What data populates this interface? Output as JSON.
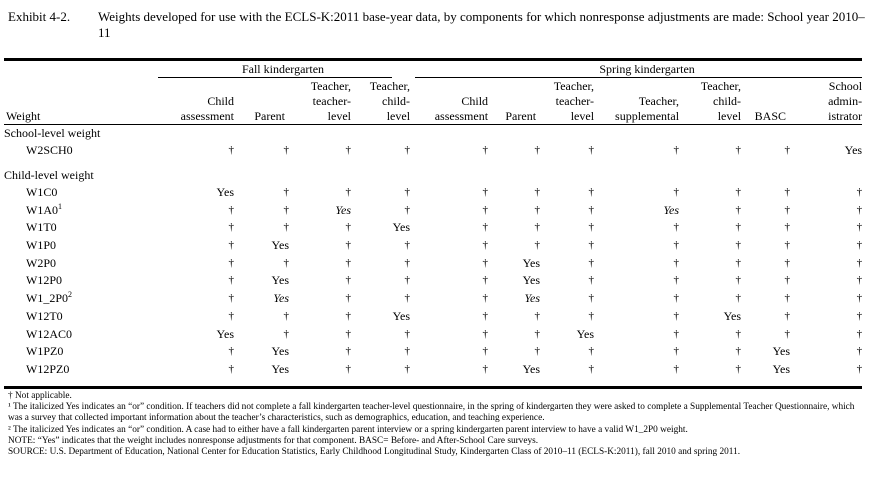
{
  "exhibit": {
    "label": "Exhibit 4-2.",
    "title": "Weights developed for use with the ECLS-K:2011 base-year data, by components for which nonresponse adjustments are made: School year 2010–11"
  },
  "groups": {
    "fall": "Fall kindergarten",
    "spring": "Spring kindergarten"
  },
  "columns": {
    "weight": "Weight",
    "fall_child": "Child assessment",
    "fall_parent": "Parent",
    "fall_teacher_level": "Teacher, teacher-level",
    "fall_teacher_child": "Teacher, child-level",
    "spring_child": "Child assessment",
    "spring_parent": "Parent",
    "spring_teacher_level": "Teacher, teacher-level",
    "spring_teacher_supp": "Teacher, supplemental",
    "spring_teacher_child": "Teacher, child-level",
    "spring_basc": "BASC",
    "spring_admin": "School administrator"
  },
  "sections": {
    "school": "School-level weight",
    "child": "Child-level weight"
  },
  "school_rows": [
    {
      "name": "W2SCH0",
      "sup": "",
      "cells": [
        "†",
        "†",
        "†",
        "†",
        "†",
        "†",
        "†",
        "†",
        "†",
        "†",
        "Yes"
      ],
      "italic": []
    }
  ],
  "child_rows": [
    {
      "name": "W1C0",
      "sup": "",
      "cells": [
        "Yes",
        "†",
        "†",
        "†",
        "†",
        "†",
        "†",
        "†",
        "†",
        "†",
        "†"
      ],
      "italic": []
    },
    {
      "name": "W1A0",
      "sup": "1",
      "cells": [
        "†",
        "†",
        "Yes",
        "†",
        "†",
        "†",
        "†",
        "Yes",
        "†",
        "†",
        "†"
      ],
      "italic": [
        2,
        7
      ]
    },
    {
      "name": "W1T0",
      "sup": "",
      "cells": [
        "†",
        "†",
        "†",
        "Yes",
        "†",
        "†",
        "†",
        "†",
        "†",
        "†",
        "†"
      ],
      "italic": []
    },
    {
      "name": "W1P0",
      "sup": "",
      "cells": [
        "†",
        "Yes",
        "†",
        "†",
        "†",
        "†",
        "†",
        "†",
        "†",
        "†",
        "†"
      ],
      "italic": []
    },
    {
      "name": "W2P0",
      "sup": "",
      "cells": [
        "†",
        "†",
        "†",
        "†",
        "†",
        "Yes",
        "†",
        "†",
        "†",
        "†",
        "†"
      ],
      "italic": []
    },
    {
      "name": "W12P0",
      "sup": "",
      "cells": [
        "†",
        "Yes",
        "†",
        "†",
        "†",
        "Yes",
        "†",
        "†",
        "†",
        "†",
        "†"
      ],
      "italic": []
    },
    {
      "name": "W1_2P0",
      "sup": "2",
      "cells": [
        "†",
        "Yes",
        "†",
        "†",
        "†",
        "Yes",
        "†",
        "†",
        "†",
        "†",
        "†"
      ],
      "italic": [
        1,
        5
      ]
    },
    {
      "name": "W12T0",
      "sup": "",
      "cells": [
        "†",
        "†",
        "†",
        "Yes",
        "†",
        "†",
        "†",
        "†",
        "Yes",
        "†",
        "†"
      ],
      "italic": []
    },
    {
      "name": "W12AC0",
      "sup": "",
      "cells": [
        "Yes",
        "†",
        "†",
        "†",
        "†",
        "†",
        "Yes",
        "†",
        "†",
        "†",
        "†"
      ],
      "italic": []
    },
    {
      "name": "W1PZ0",
      "sup": "",
      "cells": [
        "†",
        "Yes",
        "†",
        "†",
        "†",
        "†",
        "†",
        "†",
        "†",
        "Yes",
        "†"
      ],
      "italic": []
    },
    {
      "name": "W12PZ0",
      "sup": "",
      "cells": [
        "†",
        "Yes",
        "†",
        "†",
        "†",
        "Yes",
        "†",
        "†",
        "†",
        "Yes",
        "†"
      ],
      "italic": []
    }
  ],
  "notes": [
    "† Not applicable.",
    "¹ The italicized Yes indicates an “or” condition. If teachers did not complete a fall kindergarten teacher-level questionnaire, in the spring of kindergarten they were asked to complete a Supplemental Teacher Questionnaire, which was a survey that collected important information about the teacher’s characteristics, such as demographics, education, and teaching experience.",
    "² The italicized Yes indicates an “or” condition. A case had to either have a fall kindergarten parent interview or a spring kindergarten parent interview to have a valid W1_2P0 weight.",
    "NOTE: “Yes” indicates that the weight includes nonresponse adjustments for that component. BASC= Before- and After-School Care surveys.",
    "SOURCE: U.S. Department of Education, National Center for Education Statistics, Early Childhood Longitudinal Study, Kindergarten Class of 2010–11 (ECLS-K:2011), fall 2010 and spring 2011."
  ]
}
